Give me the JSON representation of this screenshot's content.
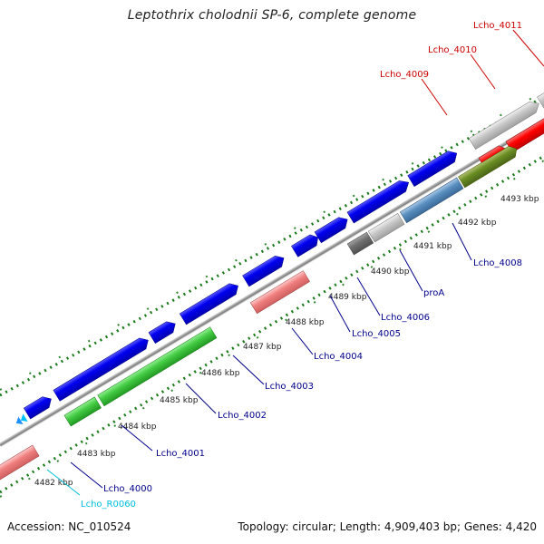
{
  "title": "Leptothrix cholodnii SP-6, complete genome",
  "accession": "Accession: NC_010524",
  "topology": "Topology: circular; Length: 4,909,403 bp; Genes: 4,420",
  "colors": {
    "cds_forward": "#0000ee",
    "backbone": "#808080",
    "label_blue": "#00008b",
    "label_red": "#cc0000",
    "label_cyan": "#00bfe0",
    "tick_green": "#1a7a1a"
  },
  "scale_labels": [
    "4482 kbp",
    "4483 kbp",
    "4484 kbp",
    "4485 kbp",
    "4486 kbp",
    "4487 kbp",
    "4488 kbp",
    "4489 kbp",
    "4490 kbp",
    "4491 kbp",
    "4492 kbp",
    "4493 kbp"
  ],
  "gene_labels": [
    "Lcho_R0060",
    "Lcho_4000",
    "Lcho_4001",
    "Lcho_4002",
    "Lcho_4003",
    "Lcho_4004",
    "Lcho_4005",
    "Lcho_4006",
    "proA",
    "Lcho_4008",
    "Lcho_4009",
    "Lcho_4010",
    "Lcho_4011"
  ]
}
